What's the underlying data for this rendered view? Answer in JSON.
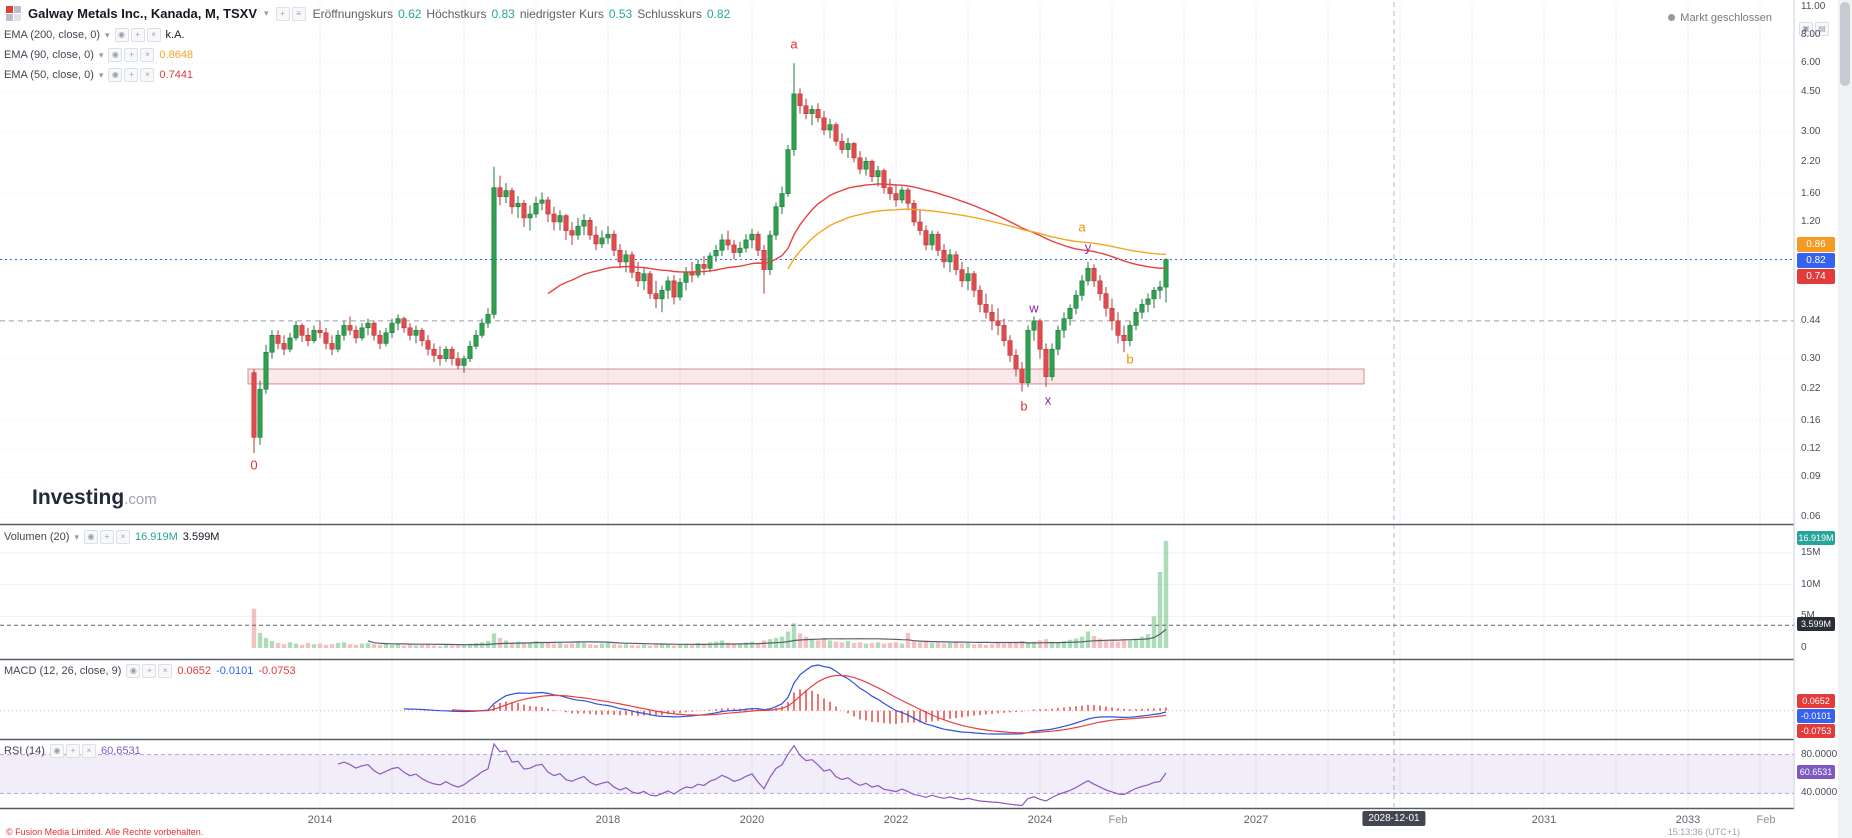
{
  "header": {
    "title": "Galway Metals Inc., Kanada, M, TSXV",
    "market_status": "Markt geschlossen",
    "ohlc": [
      {
        "label": "Eröffnungskurs",
        "value": "0.62"
      },
      {
        "label": "Höchstkurs",
        "value": "0.83"
      },
      {
        "label": "niedrigster Kurs",
        "value": "0.53"
      },
      {
        "label": "Schlusskurs",
        "value": "0.82"
      }
    ]
  },
  "indicators": [
    {
      "label": "EMA (200, close, 0)",
      "value": "k.A."
    },
    {
      "label": "EMA (90, close, 0)",
      "value": "0.8648"
    },
    {
      "label": "EMA (50, close, 0)",
      "value": "0.7441"
    }
  ],
  "volume_pane": {
    "label": "Volumen (20)",
    "current": "16.919M",
    "ma": "3.599M"
  },
  "macd_pane": {
    "label": "MACD (12, 26, close, 9)",
    "v1": "0.0652",
    "v2": "-0.0101",
    "v3": "-0.0753"
  },
  "rsi_pane": {
    "label": "RSI (14)",
    "value": "60.6531"
  },
  "watermark": {
    "brand": "Investing",
    "tld": ".com"
  },
  "footer": {
    "disclaimer": "© Fusion Media Limited. Alle Rechte vorbehalten.",
    "timestamp": "15:13:36 (UTC+1)"
  },
  "colors": {
    "up": "#2da14f",
    "up_border": "#1e7a3a",
    "down": "#e14b4c",
    "down_border": "#b93638",
    "ema50": "#e8403f",
    "ema90": "#f5a623",
    "vol_up": "rgba(47,169,79,0.40)",
    "vol_down": "rgba(225,75,76,0.35)",
    "macd_line": "#2c52d8",
    "signal_line": "#e8403f",
    "macd_hist": "#e23b3b",
    "rsi_line": "#8e57c2",
    "rsi_band": "rgba(126,87,194,0.10)",
    "price_line": "#2962ff",
    "zone_fill": "rgba(224,108,117,0.15)",
    "zone_border": "rgba(192,72,82,0.6)"
  },
  "axes": {
    "price_ticks": [
      "11.00",
      "8.00",
      "6.00",
      "4.50",
      "3.00",
      "2.20",
      "1.60",
      "1.20",
      "0.44",
      "0.30",
      "0.22",
      "0.16",
      "0.12",
      "0.09",
      "0.06"
    ],
    "price_badges": [
      {
        "text": "0.86",
        "bg": "#f59b22"
      },
      {
        "text": "0.82",
        "bg": "#3563f0"
      },
      {
        "text": "0.74",
        "bg": "#e23b3b"
      }
    ],
    "volume_ticks": [
      {
        "label": "15M",
        "v": 15
      },
      {
        "label": "10M",
        "v": 10
      },
      {
        "label": "5M",
        "v": 5
      },
      {
        "label": "0",
        "v": 0
      }
    ],
    "volume_badges": [
      {
        "text": "16.919M",
        "bg": "#26a69a"
      },
      {
        "text": "3.599M",
        "bg": "#2a2e39"
      }
    ],
    "macd_badges": [
      {
        "text": "0.0652",
        "bg": "#e23b3b"
      },
      {
        "text": "-0.0101",
        "bg": "#3563f0"
      },
      {
        "text": "-0.0753",
        "bg": "#e23b3b"
      }
    ],
    "rsi_ticks": [
      {
        "label": "80.0000",
        "v": 80
      },
      {
        "label": "40.0000",
        "v": 40
      }
    ],
    "rsi_badge": {
      "text": "60.6531",
      "bg": "#7e57c2"
    },
    "time_labels": [
      {
        "label": "2014",
        "m": 11,
        "minor": false
      },
      {
        "label": "2016",
        "m": 35,
        "minor": false
      },
      {
        "label": "2018",
        "m": 59,
        "minor": false
      },
      {
        "label": "2020",
        "m": 83,
        "minor": false
      },
      {
        "label": "2022",
        "m": 107,
        "minor": false
      },
      {
        "label": "2024",
        "m": 131,
        "minor": false
      },
      {
        "label": "Feb",
        "m": 144,
        "minor": true
      },
      {
        "label": "2027",
        "m": 167,
        "minor": false
      },
      {
        "label": "2031",
        "m": 215,
        "minor": false
      },
      {
        "label": "2033",
        "m": 239,
        "minor": false
      },
      {
        "label": "Feb",
        "m": 252,
        "minor": true
      }
    ],
    "time_badge": {
      "label": "2028-12-01",
      "m": 190
    }
  },
  "chart_data": {
    "type": "candlestick",
    "title": "Galway Metals Inc., Kanada, M, TSXV",
    "interval": "monthly",
    "scale": "logarithmic",
    "start_month": "2013-02",
    "ylim": [
      0.06,
      11.0
    ],
    "price_ticks": [
      11.0,
      8.0,
      6.0,
      4.5,
      3.0,
      2.2,
      1.6,
      1.2,
      0.44,
      0.3,
      0.22,
      0.16,
      0.12,
      0.09,
      0.06
    ],
    "price_line": 0.82,
    "support_line": 0.44,
    "zone": {
      "top": 0.27,
      "bottom": 0.232,
      "m_start": -1,
      "m_end": 185
    },
    "event_line_month": 190,
    "indicators": {
      "ema": [
        {
          "period": 200,
          "value": "k.A."
        },
        {
          "period": 90,
          "value": 0.8648
        },
        {
          "period": 50,
          "value": 0.7441
        }
      ],
      "volume_ma": {
        "period": 20,
        "current_millions": 16.919,
        "ma_millions": 3.599
      },
      "macd": {
        "fast": 12,
        "slow": 26,
        "signal": 9,
        "hist": 0.0652,
        "macd": -0.0101,
        "signal_value": -0.0753
      },
      "rsi": {
        "period": 14,
        "value": 60.6531,
        "upper": 80,
        "lower": 40
      }
    },
    "wave_labels": [
      {
        "text": "0",
        "m": 0,
        "p": 0.102,
        "color": "#e03131",
        "dx": 0
      },
      {
        "text": "a",
        "m": 90,
        "p": 7.3,
        "color": "#e03131",
        "dx": 0
      },
      {
        "text": "b",
        "m": 129,
        "p": 0.185,
        "color": "#e03131",
        "dx": -4
      },
      {
        "text": "w",
        "m": 130,
        "p": 0.5,
        "color": "#8e24aa",
        "dx": 0
      },
      {
        "text": "x",
        "m": 132,
        "p": 0.198,
        "color": "#8e24aa",
        "dx": 2
      },
      {
        "text": "y",
        "m": 139,
        "p": 0.93,
        "color": "#8e24aa",
        "dx": 0
      },
      {
        "text": "a",
        "m": 139,
        "p": 1.14,
        "color": "#f08c00",
        "dx": -6
      },
      {
        "text": "b",
        "m": 146,
        "p": 0.3,
        "color": "#f08c00",
        "dx": 0
      }
    ],
    "candles": [
      [
        0.26,
        0.27,
        0.115,
        0.135
      ],
      [
        0.135,
        0.24,
        0.125,
        0.22
      ],
      [
        0.22,
        0.345,
        0.21,
        0.32
      ],
      [
        0.32,
        0.4,
        0.3,
        0.38
      ],
      [
        0.38,
        0.4,
        0.33,
        0.35
      ],
      [
        0.35,
        0.38,
        0.31,
        0.33
      ],
      [
        0.33,
        0.39,
        0.32,
        0.37
      ],
      [
        0.37,
        0.44,
        0.36,
        0.42
      ],
      [
        0.42,
        0.43,
        0.355,
        0.38
      ],
      [
        0.38,
        0.41,
        0.34,
        0.36
      ],
      [
        0.36,
        0.42,
        0.35,
        0.4
      ],
      [
        0.4,
        0.44,
        0.37,
        0.39
      ],
      [
        0.39,
        0.41,
        0.33,
        0.35
      ],
      [
        0.35,
        0.38,
        0.31,
        0.33
      ],
      [
        0.33,
        0.4,
        0.32,
        0.38
      ],
      [
        0.38,
        0.44,
        0.36,
        0.42
      ],
      [
        0.42,
        0.46,
        0.38,
        0.4
      ],
      [
        0.4,
        0.42,
        0.35,
        0.37
      ],
      [
        0.37,
        0.43,
        0.36,
        0.41
      ],
      [
        0.41,
        0.45,
        0.38,
        0.43
      ],
      [
        0.43,
        0.44,
        0.36,
        0.38
      ],
      [
        0.38,
        0.4,
        0.33,
        0.35
      ],
      [
        0.35,
        0.41,
        0.34,
        0.39
      ],
      [
        0.39,
        0.45,
        0.37,
        0.43
      ],
      [
        0.43,
        0.47,
        0.4,
        0.45
      ],
      [
        0.45,
        0.46,
        0.39,
        0.41
      ],
      [
        0.41,
        0.43,
        0.36,
        0.38
      ],
      [
        0.38,
        0.42,
        0.35,
        0.4
      ],
      [
        0.4,
        0.41,
        0.34,
        0.36
      ],
      [
        0.36,
        0.38,
        0.31,
        0.33
      ],
      [
        0.33,
        0.35,
        0.29,
        0.31
      ],
      [
        0.31,
        0.34,
        0.28,
        0.3
      ],
      [
        0.3,
        0.34,
        0.29,
        0.33
      ],
      [
        0.33,
        0.34,
        0.28,
        0.3
      ],
      [
        0.3,
        0.32,
        0.27,
        0.28
      ],
      [
        0.28,
        0.31,
        0.26,
        0.3
      ],
      [
        0.3,
        0.36,
        0.29,
        0.34
      ],
      [
        0.34,
        0.4,
        0.33,
        0.38
      ],
      [
        0.38,
        0.45,
        0.37,
        0.43
      ],
      [
        0.43,
        0.5,
        0.41,
        0.47
      ],
      [
        0.47,
        2.1,
        0.45,
        1.7
      ],
      [
        1.7,
        1.92,
        1.42,
        1.55
      ],
      [
        1.55,
        1.78,
        1.45,
        1.65
      ],
      [
        1.65,
        1.7,
        1.3,
        1.4
      ],
      [
        1.4,
        1.56,
        1.25,
        1.45
      ],
      [
        1.45,
        1.5,
        1.14,
        1.25
      ],
      [
        1.25,
        1.42,
        1.1,
        1.3
      ],
      [
        1.3,
        1.55,
        1.25,
        1.45
      ],
      [
        1.45,
        1.62,
        1.35,
        1.5
      ],
      [
        1.5,
        1.55,
        1.2,
        1.3
      ],
      [
        1.3,
        1.4,
        1.1,
        1.2
      ],
      [
        1.2,
        1.35,
        1.1,
        1.28
      ],
      [
        1.28,
        1.3,
        1.0,
        1.1
      ],
      [
        1.1,
        1.2,
        0.95,
        1.05
      ],
      [
        1.05,
        1.25,
        1.0,
        1.15
      ],
      [
        1.15,
        1.3,
        1.05,
        1.22
      ],
      [
        1.22,
        1.26,
        1.0,
        1.05
      ],
      [
        1.05,
        1.15,
        0.9,
        0.96
      ],
      [
        0.96,
        1.1,
        0.92,
        1.02
      ],
      [
        1.02,
        1.15,
        0.96,
        1.06
      ],
      [
        1.06,
        1.1,
        0.85,
        0.9
      ],
      [
        0.9,
        0.96,
        0.75,
        0.8
      ],
      [
        0.8,
        0.9,
        0.72,
        0.86
      ],
      [
        0.86,
        0.89,
        0.68,
        0.72
      ],
      [
        0.72,
        0.8,
        0.62,
        0.66
      ],
      [
        0.66,
        0.76,
        0.6,
        0.71
      ],
      [
        0.71,
        0.73,
        0.55,
        0.58
      ],
      [
        0.58,
        0.66,
        0.5,
        0.55
      ],
      [
        0.55,
        0.63,
        0.48,
        0.6
      ],
      [
        0.6,
        0.69,
        0.55,
        0.66
      ],
      [
        0.66,
        0.7,
        0.52,
        0.56
      ],
      [
        0.56,
        0.68,
        0.54,
        0.65
      ],
      [
        0.65,
        0.76,
        0.6,
        0.72
      ],
      [
        0.72,
        0.8,
        0.65,
        0.7
      ],
      [
        0.7,
        0.82,
        0.68,
        0.78
      ],
      [
        0.78,
        0.85,
        0.7,
        0.75
      ],
      [
        0.75,
        0.88,
        0.72,
        0.85
      ],
      [
        0.85,
        0.95,
        0.8,
        0.9
      ],
      [
        0.9,
        1.06,
        0.85,
        1.0
      ],
      [
        1.0,
        1.1,
        0.9,
        0.95
      ],
      [
        0.95,
        1.0,
        0.82,
        0.88
      ],
      [
        0.88,
        0.98,
        0.84,
        0.92
      ],
      [
        0.92,
        1.06,
        0.88,
        1.0
      ],
      [
        1.0,
        1.12,
        0.92,
        1.06
      ],
      [
        1.06,
        1.09,
        0.85,
        0.9
      ],
      [
        0.9,
        0.95,
        0.58,
        0.74
      ],
      [
        0.74,
        1.1,
        0.7,
        1.05
      ],
      [
        1.05,
        1.46,
        1.0,
        1.4
      ],
      [
        1.4,
        1.72,
        1.3,
        1.6
      ],
      [
        1.6,
        2.62,
        1.55,
        2.5
      ],
      [
        2.5,
        6.0,
        2.35,
        4.4
      ],
      [
        4.4,
        4.65,
        3.6,
        3.9
      ],
      [
        3.9,
        4.2,
        3.4,
        3.6
      ],
      [
        3.6,
        3.92,
        3.2,
        3.76
      ],
      [
        3.76,
        4.0,
        3.3,
        3.45
      ],
      [
        3.45,
        3.7,
        2.9,
        3.05
      ],
      [
        3.05,
        3.42,
        2.8,
        3.22
      ],
      [
        3.22,
        3.3,
        2.6,
        2.72
      ],
      [
        2.72,
        2.95,
        2.4,
        2.5
      ],
      [
        2.5,
        2.82,
        2.3,
        2.66
      ],
      [
        2.66,
        2.7,
        2.2,
        2.3
      ],
      [
        2.3,
        2.46,
        1.95,
        2.05
      ],
      [
        2.05,
        2.32,
        1.92,
        2.22
      ],
      [
        2.22,
        2.26,
        1.8,
        1.9
      ],
      [
        1.9,
        2.12,
        1.72,
        2.02
      ],
      [
        2.02,
        2.06,
        1.6,
        1.7
      ],
      [
        1.7,
        1.86,
        1.5,
        1.6
      ],
      [
        1.6,
        1.76,
        1.4,
        1.5
      ],
      [
        1.5,
        1.72,
        1.45,
        1.66
      ],
      [
        1.66,
        1.7,
        1.35,
        1.45
      ],
      [
        1.45,
        1.5,
        1.15,
        1.2
      ],
      [
        1.2,
        1.36,
        1.05,
        1.1
      ],
      [
        1.1,
        1.16,
        0.9,
        0.95
      ],
      [
        0.95,
        1.1,
        0.9,
        1.06
      ],
      [
        1.06,
        1.09,
        0.85,
        0.9
      ],
      [
        0.9,
        0.96,
        0.75,
        0.8
      ],
      [
        0.8,
        0.91,
        0.72,
        0.86
      ],
      [
        0.86,
        0.89,
        0.7,
        0.74
      ],
      [
        0.74,
        0.8,
        0.62,
        0.66
      ],
      [
        0.66,
        0.76,
        0.6,
        0.71
      ],
      [
        0.71,
        0.73,
        0.56,
        0.6
      ],
      [
        0.6,
        0.63,
        0.48,
        0.52
      ],
      [
        0.52,
        0.58,
        0.45,
        0.48
      ],
      [
        0.48,
        0.52,
        0.4,
        0.44
      ],
      [
        0.44,
        0.5,
        0.38,
        0.42
      ],
      [
        0.42,
        0.45,
        0.34,
        0.36
      ],
      [
        0.36,
        0.38,
        0.29,
        0.31
      ],
      [
        0.31,
        0.33,
        0.25,
        0.27
      ],
      [
        0.27,
        0.29,
        0.215,
        0.235
      ],
      [
        0.235,
        0.42,
        0.225,
        0.4
      ],
      [
        0.4,
        0.46,
        0.36,
        0.44
      ],
      [
        0.44,
        0.45,
        0.3,
        0.33
      ],
      [
        0.33,
        0.35,
        0.225,
        0.25
      ],
      [
        0.25,
        0.35,
        0.24,
        0.33
      ],
      [
        0.33,
        0.42,
        0.31,
        0.4
      ],
      [
        0.4,
        0.48,
        0.37,
        0.45
      ],
      [
        0.45,
        0.52,
        0.42,
        0.5
      ],
      [
        0.5,
        0.6,
        0.47,
        0.57
      ],
      [
        0.57,
        0.7,
        0.54,
        0.66
      ],
      [
        0.66,
        0.8,
        0.63,
        0.75
      ],
      [
        0.75,
        0.78,
        0.62,
        0.66
      ],
      [
        0.66,
        0.7,
        0.54,
        0.58
      ],
      [
        0.58,
        0.62,
        0.46,
        0.5
      ],
      [
        0.5,
        0.55,
        0.4,
        0.44
      ],
      [
        0.44,
        0.48,
        0.35,
        0.38
      ],
      [
        0.38,
        0.42,
        0.32,
        0.36
      ],
      [
        0.36,
        0.44,
        0.34,
        0.42
      ],
      [
        0.42,
        0.5,
        0.4,
        0.48
      ],
      [
        0.48,
        0.55,
        0.45,
        0.52
      ],
      [
        0.52,
        0.58,
        0.48,
        0.55
      ],
      [
        0.55,
        0.62,
        0.5,
        0.6
      ],
      [
        0.6,
        0.66,
        0.55,
        0.62
      ],
      [
        0.62,
        0.83,
        0.53,
        0.82
      ]
    ],
    "volumes_millions": [
      6.2,
      2.4,
      1.6,
      1.1,
      0.8,
      0.6,
      0.9,
      0.7,
      0.5,
      0.8,
      0.6,
      0.7,
      0.5,
      0.6,
      0.8,
      0.9,
      0.6,
      0.5,
      0.7,
      0.8,
      0.6,
      0.5,
      0.6,
      0.5,
      0.6,
      0.4,
      0.5,
      0.4,
      0.5,
      0.6,
      0.4,
      0.3,
      0.5,
      0.4,
      0.4,
      0.5,
      0.7,
      0.8,
      0.9,
      1.1,
      2.3,
      1.6,
      1.2,
      0.9,
      1.0,
      0.8,
      0.9,
      1.1,
      0.9,
      0.8,
      0.7,
      0.8,
      0.6,
      0.7,
      0.9,
      0.8,
      0.6,
      0.5,
      0.7,
      0.8,
      0.6,
      0.5,
      0.6,
      0.5,
      0.4,
      0.5,
      0.4,
      0.5,
      0.6,
      0.5,
      0.4,
      0.6,
      0.7,
      0.5,
      0.8,
      0.6,
      0.9,
      1.0,
      1.2,
      0.8,
      0.6,
      0.7,
      0.9,
      1.0,
      0.8,
      1.2,
      1.4,
      1.6,
      1.8,
      2.6,
      3.9,
      2.3,
      1.8,
      1.4,
      1.2,
      1.5,
      1.2,
      1.0,
      0.9,
      1.1,
      0.8,
      0.9,
      0.7,
      0.8,
      0.9,
      0.7,
      0.8,
      0.9,
      0.7,
      2.4,
      1.1,
      0.9,
      1.0,
      0.8,
      0.9,
      0.7,
      0.8,
      0.9,
      0.7,
      0.8,
      0.6,
      0.7,
      0.5,
      0.6,
      0.8,
      0.7,
      0.9,
      0.8,
      1.1,
      0.9,
      1.0,
      1.2,
      1.4,
      1.0,
      0.9,
      1.1,
      1.3,
      1.5,
      1.8,
      2.6,
      1.9,
      1.5,
      1.3,
      1.2,
      1.0,
      1.4,
      1.2,
      1.5,
      1.8,
      2.2,
      5.0,
      12.0,
      16.919
    ]
  }
}
